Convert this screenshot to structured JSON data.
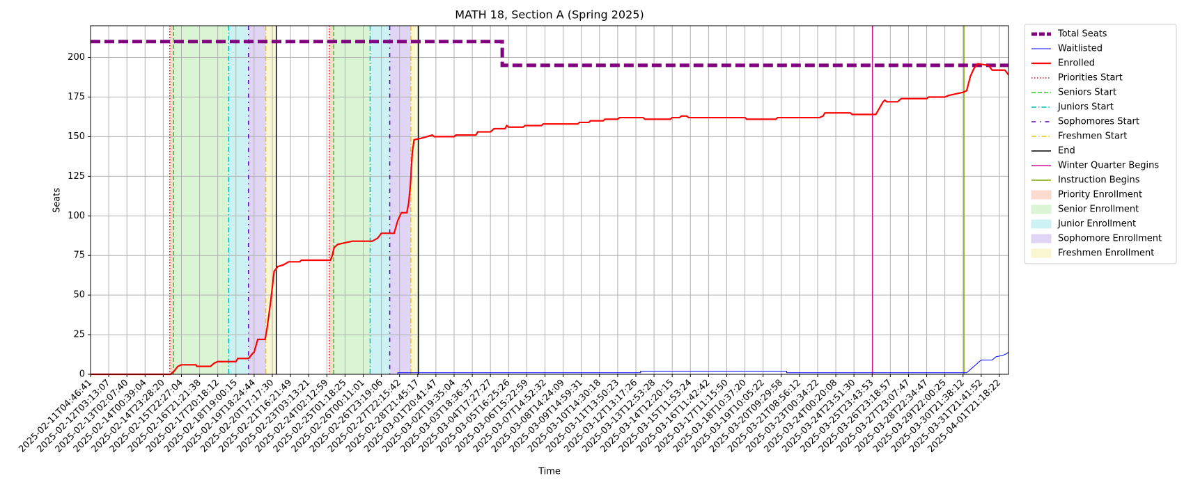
{
  "chart_data": {
    "type": "line",
    "title": "MATH 18, Section A (Spring 2025)",
    "xlabel": "Time",
    "ylabel": "Seats",
    "xlim": [
      0,
      50.5
    ],
    "ylim": [
      0,
      220
    ],
    "yticks": [
      0,
      25,
      50,
      75,
      100,
      125,
      150,
      175,
      200
    ],
    "xticks": [
      {
        "value": 0,
        "label": "2025-02-11T04:46:41"
      },
      {
        "value": 1,
        "label": "2025-02-12T03:13:07"
      },
      {
        "value": 2,
        "label": "2025-02-13T02:07:40"
      },
      {
        "value": 3,
        "label": "2025-02-14T00:39:04"
      },
      {
        "value": 4,
        "label": "2025-02-14T23:28:20"
      },
      {
        "value": 5,
        "label": "2025-02-15T22:27:04"
      },
      {
        "value": 6,
        "label": "2025-02-16T21:21:38"
      },
      {
        "value": 7,
        "label": "2025-02-17T20:18:12"
      },
      {
        "value": 8,
        "label": "2025-02-18T19:00:15"
      },
      {
        "value": 9,
        "label": "2025-02-19T18:24:44"
      },
      {
        "value": 10,
        "label": "2025-02-20T17:17:30"
      },
      {
        "value": 11,
        "label": "2025-02-21T16:21:49"
      },
      {
        "value": 12,
        "label": "2025-02-23T03:13:21"
      },
      {
        "value": 13,
        "label": "2025-02-24T02:12:59"
      },
      {
        "value": 14,
        "label": "2025-02-25T01:18:25"
      },
      {
        "value": 15,
        "label": "2025-02-26T00:11:01"
      },
      {
        "value": 16,
        "label": "2025-02-26T23:19:06"
      },
      {
        "value": 17,
        "label": "2025-02-27T22:15:42"
      },
      {
        "value": 18,
        "label": "2025-02-28T21:45:17"
      },
      {
        "value": 19,
        "label": "2025-03-01T20:41:47"
      },
      {
        "value": 20,
        "label": "2025-03-02T19:35:04"
      },
      {
        "value": 21,
        "label": "2025-03-03T18:36:37"
      },
      {
        "value": 22,
        "label": "2025-03-04T17:27:27"
      },
      {
        "value": 23,
        "label": "2025-03-05T16:25:26"
      },
      {
        "value": 24,
        "label": "2025-03-06T15:22:59"
      },
      {
        "value": 25,
        "label": "2025-03-07T14:52:32"
      },
      {
        "value": 26,
        "label": "2025-03-08T14:24:09"
      },
      {
        "value": 27,
        "label": "2025-03-09T14:59:31"
      },
      {
        "value": 28,
        "label": "2025-03-10T14:30:18"
      },
      {
        "value": 29,
        "label": "2025-03-11T13:50:23"
      },
      {
        "value": 30,
        "label": "2025-03-12T13:17:26"
      },
      {
        "value": 31,
        "label": "2025-03-13T12:53:28"
      },
      {
        "value": 32,
        "label": "2025-03-14T12:20:15"
      },
      {
        "value": 33,
        "label": "2025-03-15T11:53:24"
      },
      {
        "value": 34,
        "label": "2025-03-16T11:42:42"
      },
      {
        "value": 35,
        "label": "2025-03-17T11:15:50"
      },
      {
        "value": 36,
        "label": "2025-03-18T10:37:20"
      },
      {
        "value": 37,
        "label": "2025-03-19T10:05:22"
      },
      {
        "value": 38,
        "label": "2025-03-20T09:29:58"
      },
      {
        "value": 39,
        "label": "2025-03-21T08:56:12"
      },
      {
        "value": 40,
        "label": "2025-03-23T00:34:22"
      },
      {
        "value": 41,
        "label": "2025-03-24T00:20:08"
      },
      {
        "value": 42,
        "label": "2025-03-24T23:51:30"
      },
      {
        "value": 43,
        "label": "2025-03-25T23:43:53"
      },
      {
        "value": 44,
        "label": "2025-03-26T23:18:57"
      },
      {
        "value": 45,
        "label": "2025-03-27T23:07:47"
      },
      {
        "value": 46,
        "label": "2025-03-28T22:34:47"
      },
      {
        "value": 47,
        "label": "2025-03-29T22:00:25"
      },
      {
        "value": 48,
        "label": "2025-03-30T21:38:12"
      },
      {
        "value": 49,
        "label": "2025-03-31T21:41:52"
      },
      {
        "value": 50,
        "label": "2025-04-01T21:18:22"
      }
    ],
    "grid": true,
    "legend": "outside right",
    "series": [
      {
        "name": "Total Seats",
        "color": "#800080",
        "linestyle": "dashed",
        "linewidth": 5,
        "x": [
          0,
          22.65,
          22.65,
          50.5
        ],
        "values": [
          210,
          210,
          195,
          195
        ]
      },
      {
        "name": "Waitlisted",
        "color": "#0000ff",
        "linestyle": "solid",
        "linewidth": 1,
        "x": [
          0,
          16.9,
          16.9,
          30.26,
          30.26,
          38.3,
          38.3,
          48.2,
          48.4,
          48.6,
          48.8,
          49.0,
          49.6,
          49.8,
          50.2,
          50.4,
          50.5
        ],
        "values": [
          0,
          0,
          1,
          1,
          2,
          2,
          1,
          1,
          3,
          5,
          7,
          9,
          9,
          11,
          12,
          13,
          14
        ]
      },
      {
        "name": "Enrolled",
        "color": "#ff0000",
        "linestyle": "solid",
        "linewidth": 2.2,
        "x": [
          0,
          4.4,
          4.6,
          4.8,
          5.0,
          5.8,
          5.85,
          6.6,
          6.8,
          7.0,
          8.0,
          8.1,
          8.7,
          8.9,
          9.0,
          9.2,
          9.6,
          9.7,
          9.9,
          10.0,
          10.1,
          10.3,
          10.6,
          10.9,
          11.5,
          11.6,
          13.2,
          13.3,
          13.4,
          13.6,
          14.0,
          14.4,
          15.5,
          15.8,
          16.0,
          16.7,
          16.9,
          17.1,
          17.4,
          17.5,
          17.6,
          17.7,
          17.8,
          18.2,
          18.8,
          18.9,
          20.0,
          20.1,
          21.2,
          21.3,
          22.0,
          22.2,
          22.8,
          22.9,
          23.0,
          23.8,
          23.9,
          24.8,
          24.9,
          26.8,
          26.9,
          27.4,
          27.5,
          28.2,
          28.3,
          29.0,
          29.1,
          30.4,
          30.5,
          31.9,
          32.0,
          32.4,
          32.5,
          32.8,
          32.9,
          36.0,
          36.1,
          37.7,
          37.8,
          40.1,
          40.3,
          40.4,
          41.8,
          41.9,
          43.2,
          43.4,
          43.6,
          43.7,
          43.8,
          44.4,
          44.6,
          46.0,
          46.1,
          47.0,
          47.2,
          47.6,
          48.0,
          48.2,
          48.4,
          48.6,
          48.8,
          49.4,
          49.6,
          50.3,
          50.5
        ],
        "values": [
          0,
          0,
          2,
          5,
          6,
          6,
          5,
          5,
          7,
          8,
          8,
          10,
          10,
          13,
          14,
          22,
          22,
          28,
          45,
          55,
          65,
          68,
          69,
          71,
          71,
          72,
          72,
          75,
          80,
          82,
          83,
          84,
          84,
          86,
          89,
          89,
          97,
          102,
          102,
          108,
          120,
          140,
          148,
          149,
          151,
          150,
          150,
          151,
          151,
          153,
          153,
          155,
          155,
          157,
          156,
          156,
          157,
          157,
          158,
          158,
          159,
          159,
          160,
          160,
          161,
          161,
          162,
          162,
          161,
          161,
          162,
          162,
          163,
          163,
          162,
          162,
          161,
          161,
          162,
          162,
          163,
          165,
          165,
          164,
          164,
          168,
          172,
          173,
          172,
          172,
          174,
          174,
          175,
          175,
          176,
          177,
          178,
          179,
          188,
          193,
          196,
          195,
          192,
          192,
          189
        ]
      }
    ],
    "events": [
      {
        "name": "Priorities Start",
        "color": "#ff0000",
        "linestyle": "dotted",
        "x": [
          4.36,
          13.13
        ]
      },
      {
        "name": "Seniors Start",
        "color": "#22cc22",
        "linestyle": "dashed",
        "x": [
          4.57,
          13.38
        ]
      },
      {
        "name": "Juniors Start",
        "color": "#00bfc4",
        "linestyle": "dashdot",
        "x": [
          7.6,
          15.38
        ]
      },
      {
        "name": "Sophomores Start",
        "color": "#5a00c8",
        "linestyle": "loosedashdot",
        "x": [
          8.69,
          16.46
        ]
      },
      {
        "name": "Freshmen Start",
        "color": "#e6c800",
        "linestyle": "dashdot",
        "x": [
          9.64,
          17.62
        ]
      },
      {
        "name": "End",
        "color": "#000000",
        "linestyle": "solid",
        "x": [
          10.22,
          18.04
        ]
      },
      {
        "name": "Winter Quarter Begins",
        "color": "#d0109a",
        "linestyle": "solid",
        "x": [
          43.02
        ]
      },
      {
        "name": "Instruction Begins",
        "color": "#7fa800",
        "linestyle": "solid",
        "x": [
          48.05
        ]
      }
    ],
    "spans": [
      {
        "name": "Priority Enrollment",
        "color": "#fadbcf",
        "ranges": [
          [
            4.36,
            4.57
          ],
          [
            13.13,
            13.38
          ]
        ]
      },
      {
        "name": "Senior Enrollment",
        "color": "#d9f5d3",
        "ranges": [
          [
            4.57,
            7.6
          ],
          [
            13.38,
            15.38
          ]
        ]
      },
      {
        "name": "Junior Enrollment",
        "color": "#cdf2f4",
        "ranges": [
          [
            7.6,
            8.69
          ],
          [
            15.38,
            16.46
          ]
        ]
      },
      {
        "name": "Sophomore Enrollment",
        "color": "#e1d5f5",
        "ranges": [
          [
            8.69,
            9.64
          ],
          [
            16.46,
            17.62
          ]
        ]
      },
      {
        "name": "Freshmen Enrollment",
        "color": "#f8f7d2",
        "ranges": [
          [
            9.64,
            10.22
          ],
          [
            17.62,
            18.04
          ]
        ]
      }
    ]
  }
}
